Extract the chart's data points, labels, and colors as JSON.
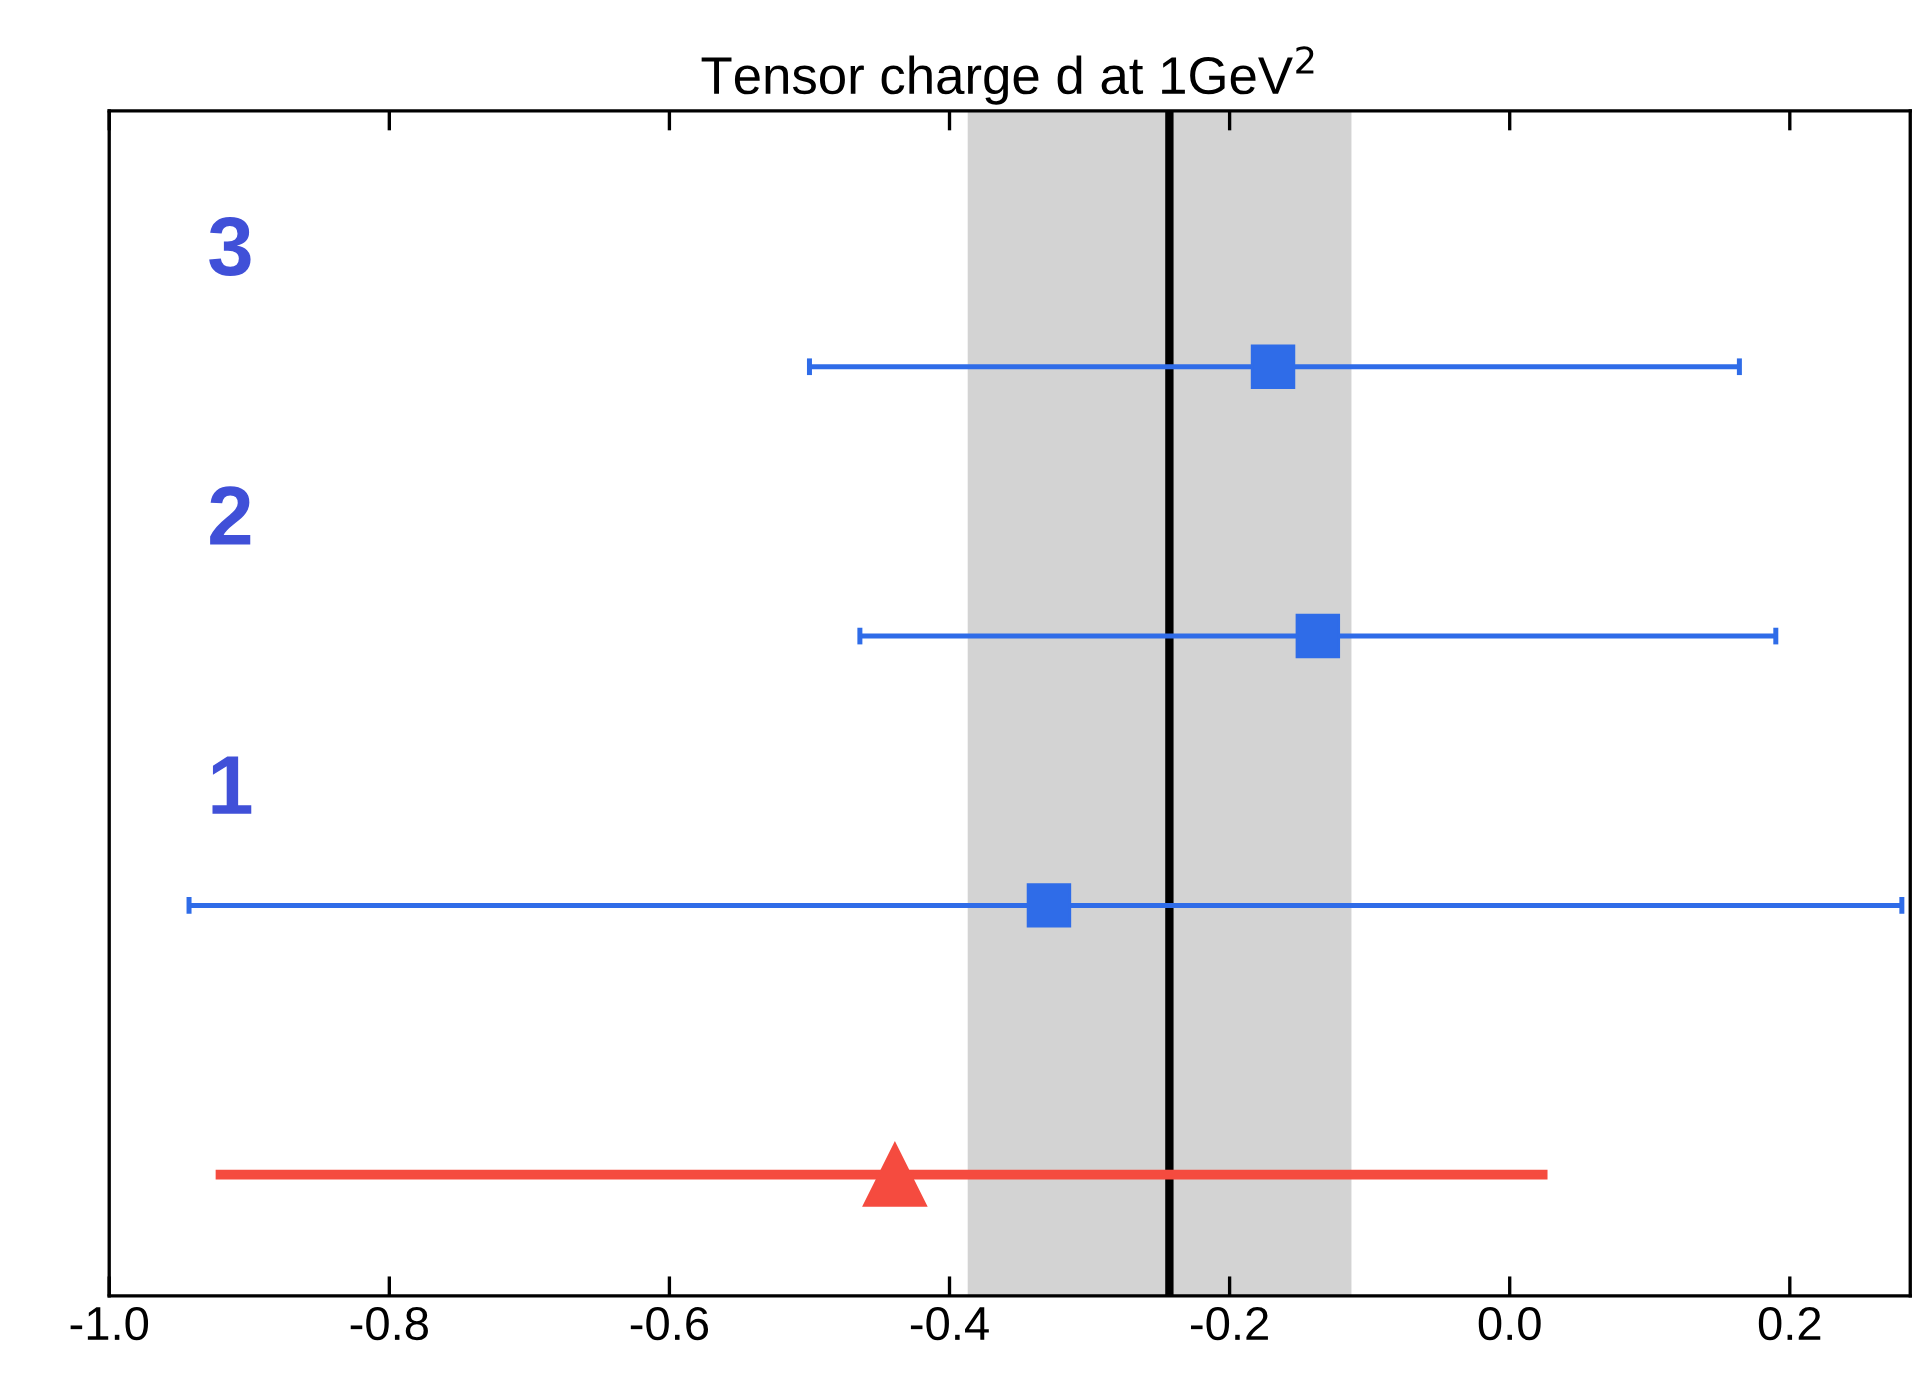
{
  "chart_data": {
    "type": "scatter",
    "orientation": "horizontal",
    "title": "Tensor charge d at 1GeV$^{2}$",
    "categories": [
      "3",
      "2",
      "1",
      null
    ],
    "series": [
      {
        "color": "#2f6ce8",
        "marker": "square",
        "values": [
          -0.169,
          -0.137,
          -0.329,
          null
        ],
        "errors": [
          [
            -0.5,
            0.164
          ],
          [
            -0.464,
            0.19
          ],
          [
            -0.943,
            0.28
          ],
          null
        ]
      },
      {
        "color": "#f54b3f",
        "marker": "triangle",
        "values": [
          null,
          null,
          null,
          -0.439
        ],
        "errors": [
          null,
          null,
          null,
          [
            -0.924,
            0.027
          ]
        ]
      }
    ],
    "xlim": [
      -1.0,
      0.286
    ],
    "xticks": [
      {
        "value": -1.0,
        "label": "-1.0"
      },
      {
        "value": -0.8,
        "label": "-0.8"
      },
      {
        "value": -0.6,
        "label": "-0.6"
      },
      {
        "value": -0.4,
        "label": "-0.4"
      },
      {
        "value": -0.2,
        "label": "-0.2"
      },
      {
        "value": 0.0,
        "label": "0.0"
      },
      {
        "value": 0.2,
        "label": "0.2"
      }
    ],
    "ref_lines": [
      {
        "axis": "x",
        "value": -0.243,
        "color": "#000000"
      }
    ],
    "bands": [
      {
        "axis": "x",
        "from": -0.387,
        "to": -0.113,
        "color": "#d3d3d3"
      }
    ],
    "tick_labels": "x",
    "grid": false
  }
}
